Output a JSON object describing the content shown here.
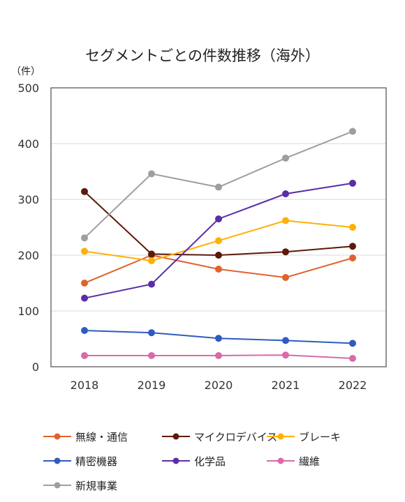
{
  "chart_data": {
    "type": "line",
    "title": "セグメントごとの件数推移（海外）",
    "ylabel": "（件）",
    "xlabel": "",
    "categories": [
      "2018",
      "2019",
      "2020",
      "2021",
      "2022"
    ],
    "ylim": [
      0,
      500
    ],
    "yticks": [
      "0",
      "100",
      "200",
      "300",
      "400",
      "500"
    ],
    "grid": true,
    "legend_position": "bottom",
    "series": [
      {
        "name": "無線・通信",
        "color": "#E0622D",
        "values": [
          150,
          200,
          175,
          160,
          195
        ]
      },
      {
        "name": "マイクロデバイス",
        "color": "#5C1A0A",
        "values": [
          314,
          202,
          200,
          206,
          216
        ]
      },
      {
        "name": "ブレーキ",
        "color": "#FFB000",
        "values": [
          207,
          190,
          226,
          262,
          250
        ]
      },
      {
        "name": "精密機器",
        "color": "#2F5BBF",
        "values": [
          65,
          61,
          51,
          47,
          42
        ]
      },
      {
        "name": "化学品",
        "color": "#5B2DA8",
        "values": [
          123,
          148,
          265,
          310,
          329
        ]
      },
      {
        "name": "繊維",
        "color": "#D86BA8",
        "values": [
          20,
          20,
          20,
          21,
          15
        ]
      },
      {
        "name": "新規事業",
        "color": "#9E9E9E",
        "values": [
          231,
          346,
          322,
          374,
          422
        ]
      }
    ]
  }
}
